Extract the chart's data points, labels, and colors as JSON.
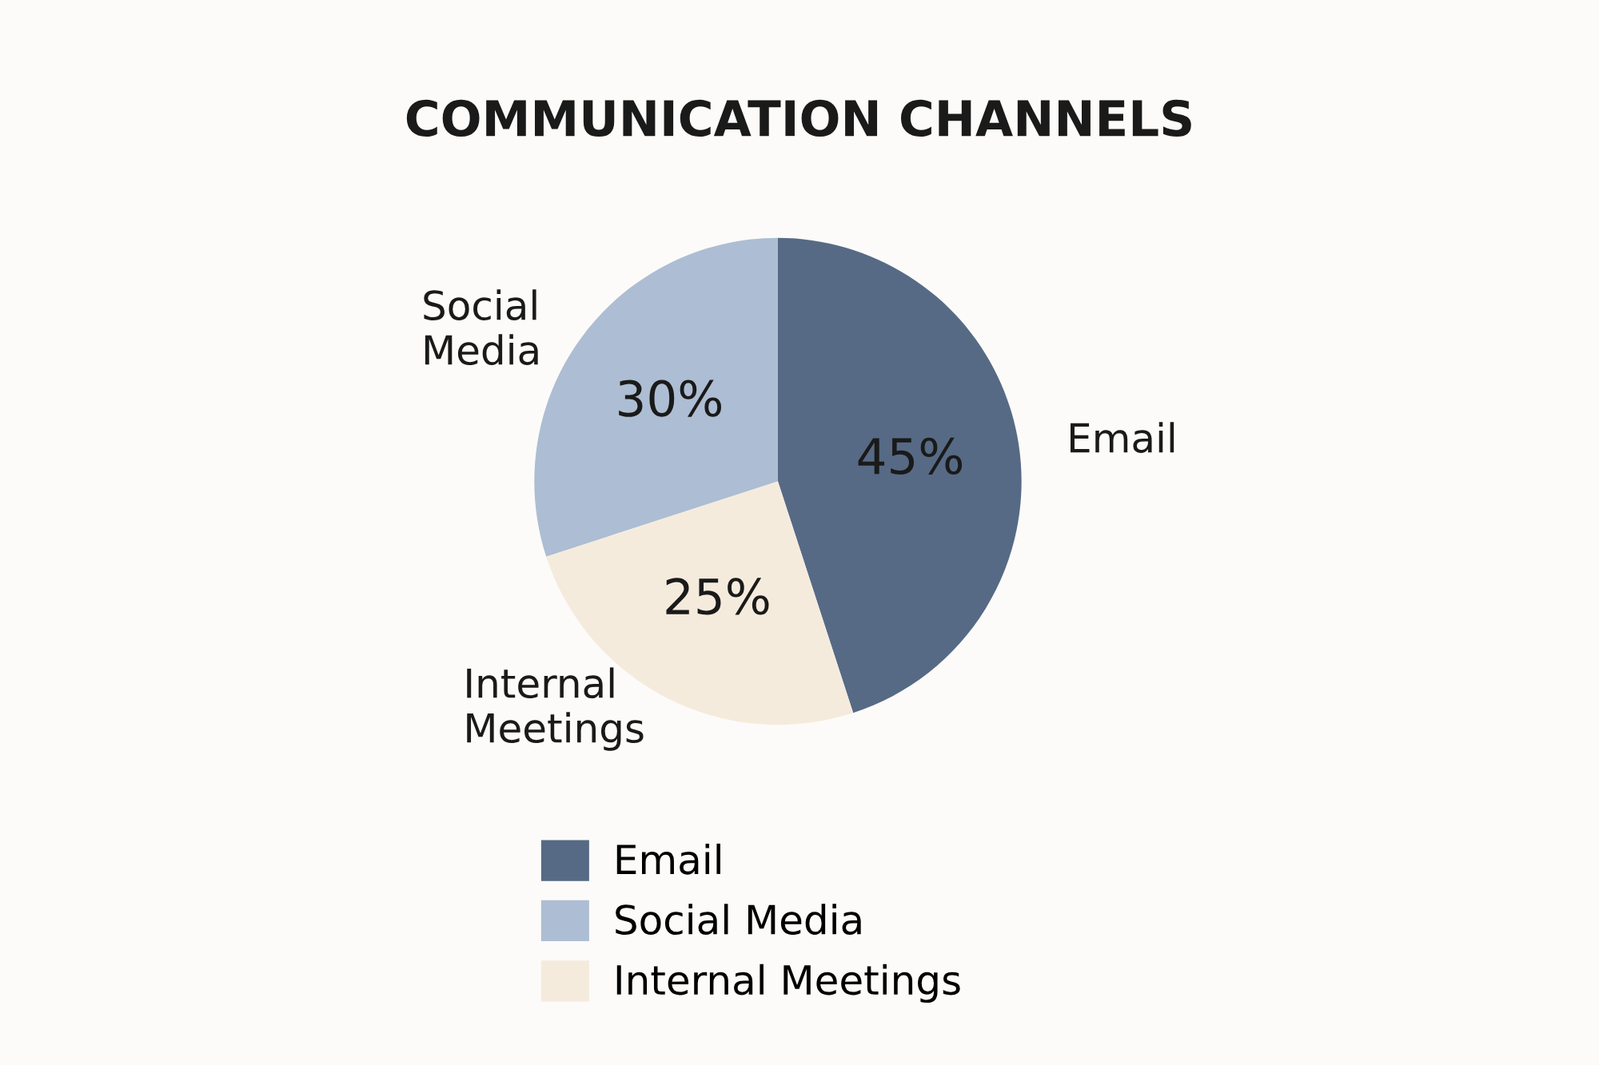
{
  "chart_data": {
    "type": "pie",
    "title": "COMMUNICATION CHANNELS",
    "categories": [
      "Email",
      "Social Media",
      "Internal Meetings"
    ],
    "values": [
      45,
      30,
      25
    ],
    "colors": [
      "#566a85",
      "#adbdd3",
      "#f5ebdd"
    ],
    "value_labels": [
      "45%",
      "30%",
      "25%"
    ],
    "legend": "bottom"
  }
}
